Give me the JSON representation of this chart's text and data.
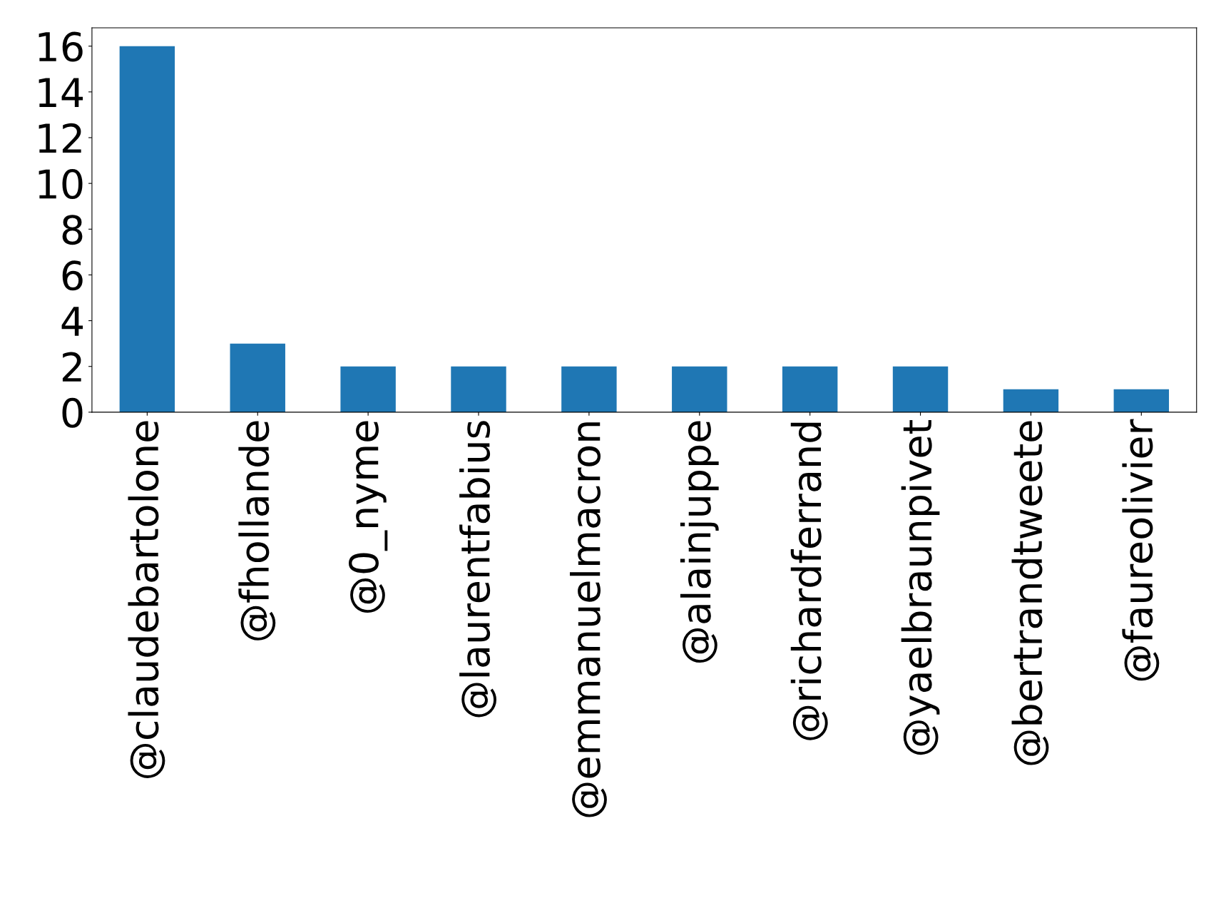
{
  "chart_data": {
    "type": "bar",
    "categories": [
      "@claudebartolone",
      "@fhollande",
      "@0_nyme",
      "@laurentfabius",
      "@emmanuelmacron",
      "@alainjuppe",
      "@richardferrand",
      "@yaelbraunpivet",
      "@bertrandtweete",
      "@faureolivier"
    ],
    "values": [
      16,
      3,
      2,
      2,
      2,
      2,
      2,
      2,
      1,
      1
    ],
    "color": "#1f77b4",
    "ylim": [
      0,
      16.8
    ],
    "yticks": [
      0,
      2,
      4,
      6,
      8,
      10,
      12,
      14,
      16
    ],
    "grid": false,
    "legend": false
  }
}
